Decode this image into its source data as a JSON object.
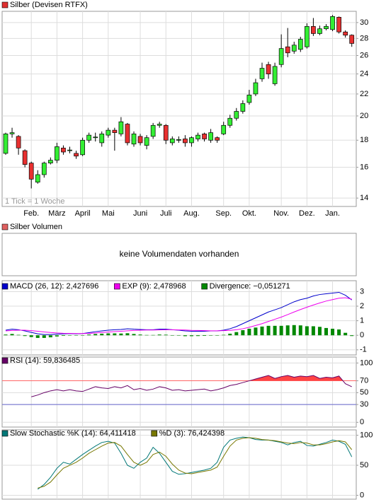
{
  "chart_data": [
    {
      "type": "candlestick",
      "title": "Silber (Devisen RTFX)",
      "legend_color": "#e03030",
      "annotation": "1 Tick = 1 Woche",
      "categories": [
        null,
        null,
        null,
        null,
        "Feb.",
        null,
        null,
        null,
        "März",
        null,
        null,
        null,
        "April",
        null,
        null,
        null,
        "Mai",
        null,
        null,
        null,
        null,
        "Juni",
        null,
        null,
        null,
        "Juli",
        null,
        null,
        null,
        "Aug.",
        null,
        null,
        null,
        null,
        "Sep.",
        null,
        null,
        null,
        "Okt.",
        null,
        null,
        null,
        null,
        "Nov.",
        null,
        null,
        null,
        "Dez.",
        null,
        null,
        null,
        "Jan.",
        null,
        null,
        null
      ],
      "open": [
        17.0,
        18.5,
        18.3,
        17.2,
        16.3,
        15.0,
        15.5,
        16.3,
        16.5,
        17.4,
        17.2,
        17.0,
        16.9,
        18.0,
        18.2,
        17.8,
        18.4,
        18.8,
        18.5,
        19.3,
        17.7,
        18.3,
        17.6,
        18.3,
        19.2,
        19.2,
        17.8,
        18.0,
        18.1,
        17.8,
        18.1,
        18.5,
        18.0,
        18.2,
        18.5,
        19.2,
        19.8,
        20.4,
        21.2,
        22.0,
        23.5,
        25.0,
        23.0,
        25.0,
        27.0,
        26.5,
        26.7,
        27.0,
        29.5,
        28.6,
        29.2,
        29.1,
        30.7,
        28.8,
        28.4
      ],
      "high": [
        18.6,
        19.0,
        18.4,
        17.3,
        16.4,
        15.8,
        16.4,
        16.7,
        17.8,
        17.6,
        17.5,
        17.2,
        18.2,
        18.6,
        18.6,
        18.7,
        19.0,
        19.0,
        19.9,
        19.4,
        18.7,
        18.5,
        18.4,
        19.4,
        19.5,
        19.3,
        18.3,
        18.3,
        18.4,
        18.3,
        18.6,
        18.6,
        18.9,
        18.3,
        19.5,
        20.1,
        20.7,
        21.4,
        22.4,
        23.5,
        25.2,
        25.3,
        25.2,
        28.5,
        29.3,
        27.6,
        28.2,
        29.9,
        30.6,
        29.6,
        29.8,
        31.0,
        30.8,
        29.0,
        28.5
      ],
      "low": [
        16.9,
        18.2,
        16.9,
        16.0,
        14.6,
        14.9,
        15.3,
        16.2,
        16.3,
        16.9,
        17.0,
        16.6,
        16.8,
        17.8,
        17.9,
        17.5,
        18.2,
        17.2,
        18.3,
        17.6,
        17.5,
        17.6,
        17.3,
        18.1,
        19.0,
        17.7,
        17.6,
        17.8,
        17.5,
        17.5,
        17.9,
        17.9,
        17.8,
        17.8,
        18.4,
        19.0,
        19.6,
        20.2,
        21.0,
        21.8,
        23.2,
        23.5,
        22.8,
        24.7,
        25.8,
        26.2,
        26.4,
        26.8,
        28.3,
        28.4,
        29.0,
        28.9,
        28.6,
        28.1,
        27.0
      ],
      "close": [
        18.5,
        18.6,
        17.4,
        16.2,
        15.2,
        15.5,
        16.3,
        16.5,
        17.5,
        17.1,
        17.25,
        16.8,
        18.0,
        18.4,
        18.25,
        18.5,
        18.8,
        18.6,
        19.5,
        17.8,
        18.5,
        17.8,
        18.2,
        19.2,
        19.3,
        18.0,
        18.1,
        18.05,
        17.8,
        18.2,
        18.4,
        18.1,
        18.6,
        18.0,
        19.2,
        19.8,
        20.4,
        21.1,
        21.9,
        23.1,
        24.6,
        24.0,
        24.8,
        26.8,
        26.3,
        27.2,
        27.9,
        29.5,
        28.6,
        29.2,
        29.5,
        30.8,
        28.8,
        28.4,
        27.4
      ],
      "up_color": "#33ee33",
      "down_color": "#e83030",
      "ylim": [
        13.5,
        31.5
      ],
      "yticks": [
        14,
        16,
        18,
        20,
        22,
        24,
        26,
        28,
        30
      ],
      "log_scale": true,
      "grid": true
    },
    {
      "type": "empty",
      "title": "Silber Volumen",
      "legend_color": "#e06060",
      "message": "keine Volumendaten vorhanden"
    },
    {
      "type": "line",
      "grid": true,
      "ylim": [
        -1.35,
        3.75
      ],
      "yticks": [
        -1,
        0,
        1,
        2,
        3
      ],
      "series": [
        {
          "name": "MACD (26, 12): 2,427696",
          "color": "#0000cc",
          "values": [
            0.35,
            0.42,
            0.38,
            0.3,
            0.2,
            0.1,
            0.05,
            0.05,
            0.08,
            0.1,
            0.12,
            0.1,
            0.12,
            0.18,
            0.25,
            0.3,
            0.35,
            0.38,
            0.4,
            0.45,
            0.42,
            0.4,
            0.38,
            0.38,
            0.42,
            0.42,
            0.38,
            0.35,
            0.3,
            0.28,
            0.28,
            0.28,
            0.3,
            0.3,
            0.35,
            0.45,
            0.6,
            0.8,
            1.0,
            1.2,
            1.4,
            1.6,
            1.75,
            1.9,
            2.1,
            2.3,
            2.45,
            2.55,
            2.7,
            2.8,
            2.85,
            2.9,
            2.95,
            2.75,
            2.43
          ]
        },
        {
          "name": "EXP (9): 2,478968",
          "color": "#ee00ee",
          "values": [
            0.3,
            0.33,
            0.35,
            0.35,
            0.32,
            0.28,
            0.23,
            0.19,
            0.16,
            0.14,
            0.13,
            0.12,
            0.12,
            0.13,
            0.16,
            0.19,
            0.22,
            0.25,
            0.28,
            0.31,
            0.33,
            0.35,
            0.36,
            0.36,
            0.37,
            0.38,
            0.38,
            0.37,
            0.36,
            0.34,
            0.33,
            0.32,
            0.31,
            0.31,
            0.32,
            0.34,
            0.38,
            0.45,
            0.55,
            0.67,
            0.8,
            0.95,
            1.1,
            1.25,
            1.42,
            1.6,
            1.77,
            1.93,
            2.08,
            2.22,
            2.35,
            2.45,
            2.55,
            2.58,
            2.48
          ]
        },
        {
          "name": "Divergence: −0,051271",
          "color": "#008800",
          "kind": "bar",
          "values": [
            0.05,
            0.09,
            0.03,
            -0.05,
            -0.12,
            -0.18,
            -0.18,
            -0.14,
            -0.08,
            -0.04,
            -0.01,
            -0.02,
            0,
            0.05,
            0.09,
            0.11,
            0.13,
            0.13,
            0.12,
            0.14,
            0.09,
            0.05,
            0.02,
            0.02,
            0.05,
            0.04,
            0,
            -0.02,
            -0.06,
            -0.06,
            -0.05,
            -0.04,
            -0.01,
            -0.01,
            0.03,
            0.11,
            0.22,
            0.35,
            0.45,
            0.53,
            0.6,
            0.65,
            0.65,
            0.65,
            0.68,
            0.7,
            0.68,
            0.62,
            0.62,
            0.58,
            0.5,
            0.45,
            0.4,
            0.17,
            -0.05
          ]
        }
      ]
    },
    {
      "type": "line",
      "grid": true,
      "ylim": [
        -8,
        110
      ],
      "yticks": [
        0,
        30,
        50,
        70,
        100
      ],
      "reference_lines": [
        {
          "value": 70,
          "color": "#ff6666",
          "fill": "#ff4444"
        },
        {
          "value": 30,
          "color": "#6666cc"
        }
      ],
      "series": [
        {
          "name": "RSI (14): 59,836485",
          "color": "#660066",
          "values": [
            null,
            null,
            null,
            null,
            43,
            46,
            50,
            53,
            55,
            53,
            55,
            53,
            52,
            56,
            60,
            58,
            57,
            60,
            58,
            62,
            55,
            57,
            54,
            56,
            60,
            58,
            54,
            55,
            53,
            54,
            55,
            56,
            53,
            55,
            58,
            62,
            64,
            67,
            70,
            73,
            76,
            79,
            74,
            77,
            79,
            76,
            78,
            77,
            79,
            74,
            76,
            75,
            78,
            65,
            60
          ]
        }
      ]
    },
    {
      "type": "line",
      "grid": true,
      "ylim": [
        -6.5,
        109
      ],
      "yticks": [
        0,
        50,
        100
      ],
      "series": [
        {
          "name": "Slow Stochastic %K (14): 64,411418",
          "color": "#007777",
          "values": [
            null,
            null,
            null,
            null,
            null,
            10,
            18,
            30,
            45,
            55,
            52,
            60,
            68,
            75,
            82,
            88,
            90,
            87,
            70,
            50,
            45,
            55,
            62,
            80,
            70,
            55,
            40,
            35,
            36,
            38,
            40,
            42,
            45,
            55,
            80,
            92,
            95,
            97,
            96,
            93,
            92,
            92,
            90,
            88,
            84,
            88,
            90,
            83,
            82,
            85,
            88,
            92,
            90,
            85,
            64
          ]
        },
        {
          "name": "%D (3): 76,424398",
          "color": "#777700",
          "values": [
            null,
            null,
            null,
            null,
            null,
            12,
            15,
            22,
            34,
            45,
            50,
            55,
            62,
            70,
            76,
            82,
            87,
            88,
            82,
            68,
            55,
            50,
            55,
            68,
            72,
            65,
            52,
            42,
            37,
            36,
            38,
            40,
            42,
            47,
            65,
            82,
            92,
            95,
            96,
            95,
            93,
            92,
            91,
            89,
            87,
            86,
            88,
            87,
            84,
            84,
            86,
            89,
            91,
            89,
            76
          ]
        }
      ]
    }
  ]
}
